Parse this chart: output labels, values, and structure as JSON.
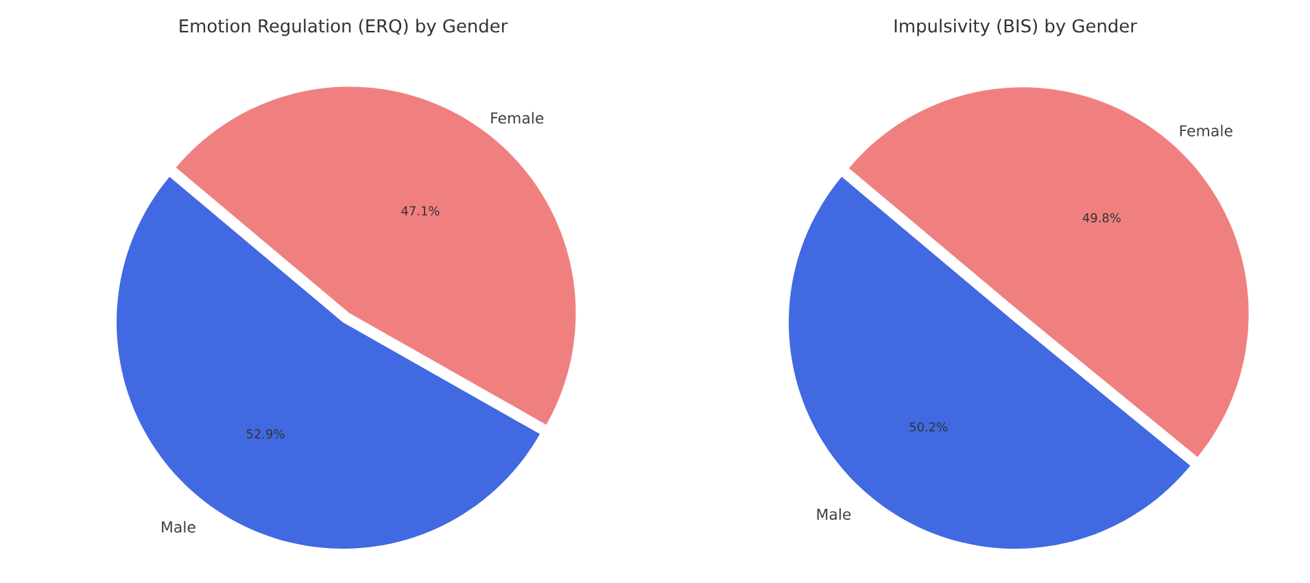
{
  "chart_data": [
    {
      "type": "pie",
      "title": "Emotion Regulation (ERQ) by Gender",
      "categories": [
        "Male",
        "Female"
      ],
      "values": [
        52.9,
        47.1
      ],
      "colors": [
        "#4169e1",
        "#f08080"
      ],
      "value_labels": [
        "52.9%",
        "47.1%"
      ]
    },
    {
      "type": "pie",
      "title": "Impulsivity (BIS) by Gender",
      "categories": [
        "Male",
        "Female"
      ],
      "values": [
        50.2,
        49.8
      ],
      "colors": [
        "#4169e1",
        "#f08080"
      ],
      "value_labels": [
        "50.2%",
        "49.8%"
      ]
    }
  ]
}
